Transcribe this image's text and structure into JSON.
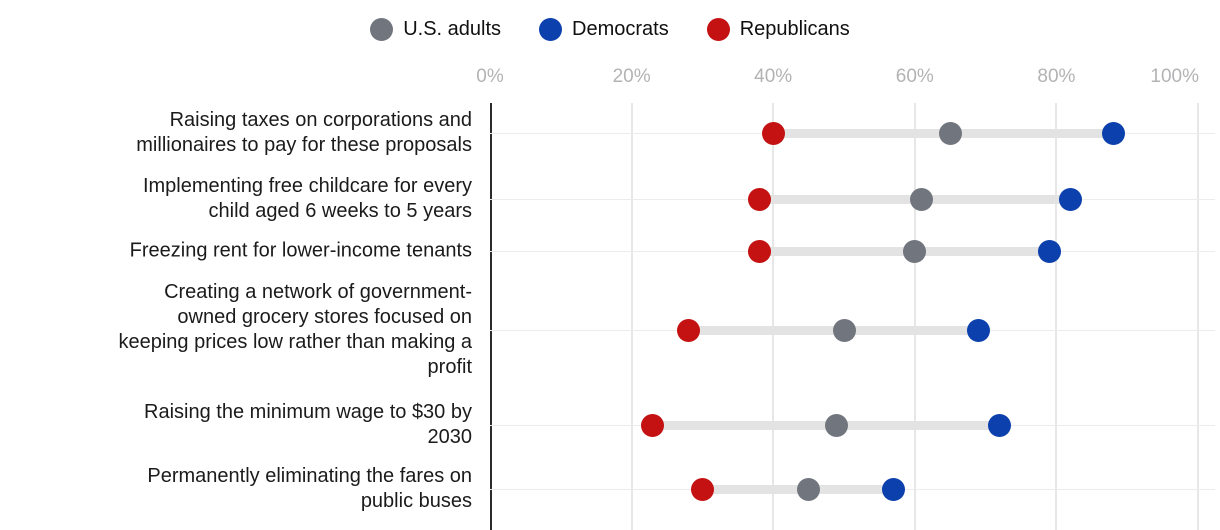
{
  "legend": {
    "items": [
      {
        "label": "U.S. adults",
        "color": "#71757d"
      },
      {
        "label": "Democrats",
        "color": "#0c40ac"
      },
      {
        "label": "Republicans",
        "color": "#c41111"
      }
    ]
  },
  "chart_data": {
    "type": "dumbbell",
    "orientation": "horizontal",
    "legend_position": "top-center",
    "grid": true,
    "x_axis": {
      "tick_labels": [
        "0%",
        "20%",
        "40%",
        "60%",
        "80%",
        "100%"
      ],
      "tick_values": [
        0,
        20,
        40,
        60,
        80,
        100
      ],
      "min": 0,
      "max": 100,
      "unit": "%"
    },
    "categories": [
      [
        "Raising taxes on corporations and",
        "millionaires to pay for these proposals"
      ],
      [
        "Implementing free childcare for every",
        "child aged 6 weeks to 5 years"
      ],
      [
        "Freezing rent for lower-income tenants"
      ],
      [
        "Creating a network of government-",
        "owned grocery stores focused on",
        "keeping prices low rather than making a",
        "profit"
      ],
      [
        "Raising the minimum wage to $30 by",
        "2030"
      ],
      [
        "Permanently eliminating the fares on",
        "public buses"
      ]
    ],
    "series": [
      {
        "name": "U.S. adults",
        "color": "#71757d",
        "values": [
          65,
          61,
          60,
          50,
          49,
          45
        ]
      },
      {
        "name": "Democrats",
        "color": "#0c40ac",
        "values": [
          88,
          82,
          79,
          69,
          72,
          57
        ]
      },
      {
        "name": "Republicans",
        "color": "#c41111",
        "values": [
          40,
          38,
          38,
          28,
          23,
          30
        ]
      }
    ]
  }
}
